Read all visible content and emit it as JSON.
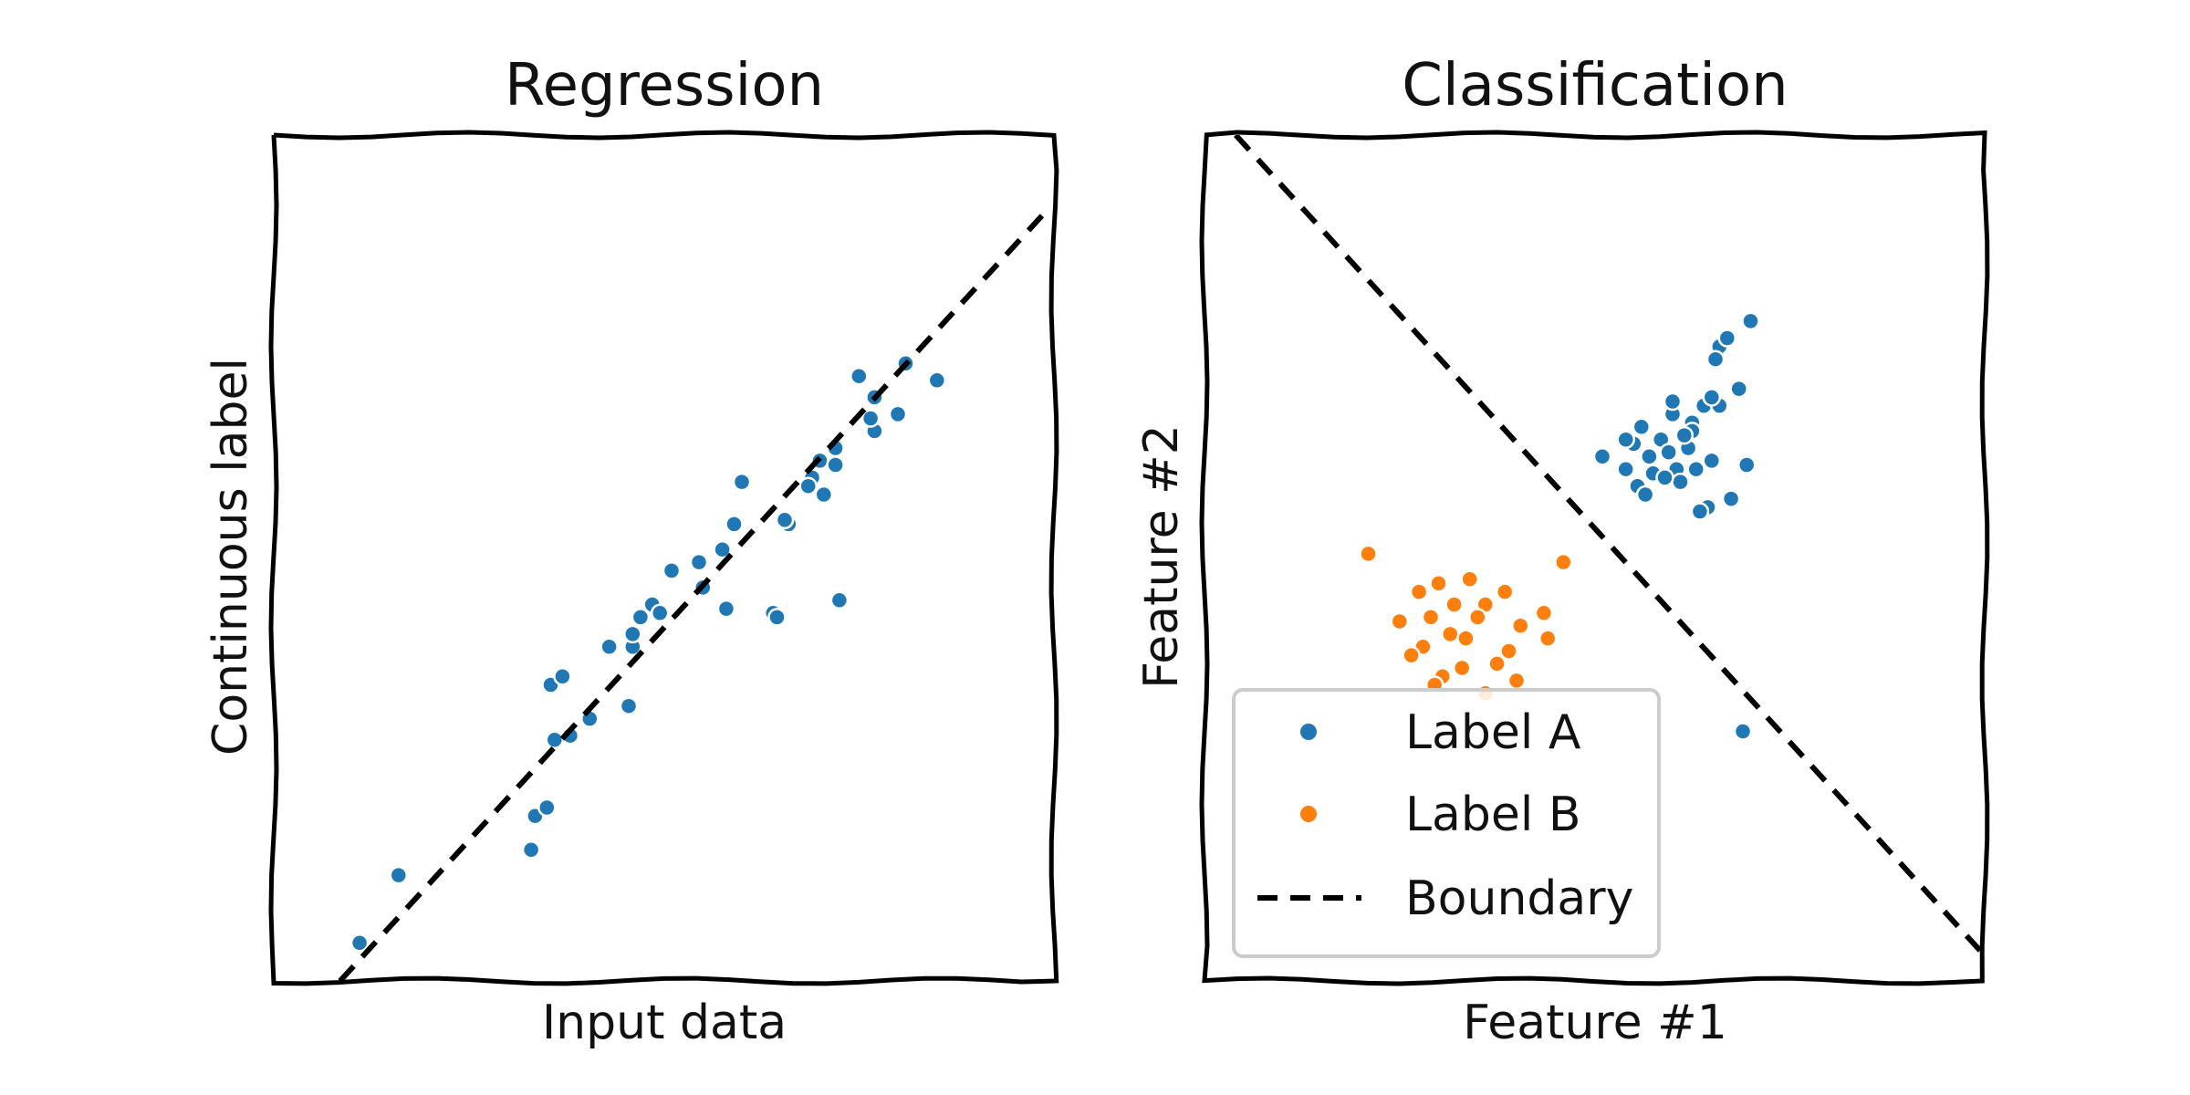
{
  "chart_data": [
    {
      "type": "scatter",
      "title": "Regression",
      "xlabel": "Input data",
      "ylabel": "Continuous label",
      "xlim": [
        0,
        10
      ],
      "ylim": [
        0,
        10
      ],
      "grid": false,
      "colors": {
        "points": "#1f77b4",
        "line": "#000000"
      },
      "series": [
        {
          "kind": "points",
          "x": [
            1.1,
            1.6,
            3.3,
            3.35,
            3.5,
            3.6,
            3.55,
            3.8,
            3.7,
            4.05,
            4.3,
            4.55,
            4.6,
            4.6,
            4.85,
            4.7,
            4.95,
            5.1,
            5.5,
            5.45,
            5.75,
            5.8,
            6.0,
            5.9,
            6.6,
            6.4,
            6.55,
            6.55,
            6.9,
            6.85,
            7.05,
            6.45,
            7.0,
            7.2,
            7.7,
            7.2,
            7.7,
            7.65,
            8.5,
            8.0,
            8.1,
            7.5,
            7.25
          ],
          "y": [
            0.45,
            1.25,
            1.55,
            1.95,
            2.05,
            2.85,
            3.5,
            2.9,
            3.6,
            3.1,
            3.95,
            3.25,
            3.95,
            4.1,
            4.45,
            4.3,
            4.35,
            4.85,
            4.65,
            4.95,
            5.1,
            4.4,
            5.9,
            5.4,
            5.4,
            4.35,
            5.45,
            5.45,
            5.95,
            5.85,
            5.75,
            4.3,
            6.15,
            6.1,
            6.5,
            6.3,
            6.9,
            6.65,
            7.1,
            6.7,
            7.3,
            7.15,
            4.5
          ]
        },
        {
          "kind": "line",
          "dashed": true,
          "x": [
            0.85,
            9.9
          ],
          "y": [
            0,
            9.1
          ]
        }
      ]
    },
    {
      "type": "scatter",
      "title": "Classification",
      "xlabel": "Feature #1",
      "ylabel": "Feature #2",
      "xlim": [
        0,
        10
      ],
      "ylim": [
        0,
        10
      ],
      "grid": false,
      "legend_position": "lower-left",
      "legend": [
        {
          "label": "Label A",
          "kind": "point",
          "color": "#1f77b4"
        },
        {
          "label": "Label B",
          "kind": "point",
          "color": "#ff7f0e"
        },
        {
          "label": "Boundary",
          "kind": "dashed-line",
          "color": "#000000"
        }
      ],
      "series": [
        {
          "name": "Label A",
          "color": "#1f77b4",
          "x": [
            5.1,
            5.4,
            5.5,
            5.6,
            5.7,
            5.75,
            5.85,
            5.95,
            6.0,
            6.05,
            6.1,
            6.2,
            6.25,
            6.3,
            6.4,
            6.5,
            6.6,
            6.7,
            6.55,
            6.85,
            6.95,
            6.75,
            6.9,
            7.0,
            6.6,
            6.25,
            5.55,
            5.9,
            6.45,
            6.35,
            6.0,
            6.15,
            5.4,
            5.65,
            6.5
          ],
          "y": [
            6.2,
            6.05,
            6.35,
            6.55,
            6.2,
            6.0,
            6.4,
            6.25,
            6.7,
            6.05,
            5.9,
            6.3,
            6.6,
            6.05,
            6.8,
            6.15,
            7.5,
            7.6,
            7.35,
            7.0,
            6.1,
            5.7,
            2.95,
            7.8,
            6.8,
            6.5,
            5.85,
            5.95,
            5.6,
            5.55,
            6.85,
            6.45,
            6.4,
            5.75,
            6.9
          ]
        },
        {
          "name": "Label B",
          "color": "#ff7f0e",
          "x": [
            2.1,
            2.5,
            2.75,
            3.0,
            3.2,
            3.4,
            3.6,
            3.85,
            4.05,
            4.35,
            4.6,
            2.8,
            3.15,
            3.5,
            3.9,
            4.4,
            3.05,
            3.3,
            3.75,
            2.95,
            3.6,
            2.65,
            4.0,
            2.9,
            3.35
          ],
          "y": [
            5.05,
            4.25,
            4.6,
            4.7,
            4.45,
            4.75,
            4.45,
            4.6,
            4.2,
            4.35,
            4.95,
            3.95,
            4.1,
            4.3,
            3.9,
            4.05,
            3.6,
            3.7,
            3.75,
            3.5,
            3.4,
            3.85,
            3.55,
            4.3,
            4.05
          ]
        },
        {
          "name": "Boundary",
          "kind": "line",
          "dashed": true,
          "x": [
            0.4,
            10
          ],
          "y": [
            10,
            0.3
          ]
        }
      ]
    }
  ]
}
